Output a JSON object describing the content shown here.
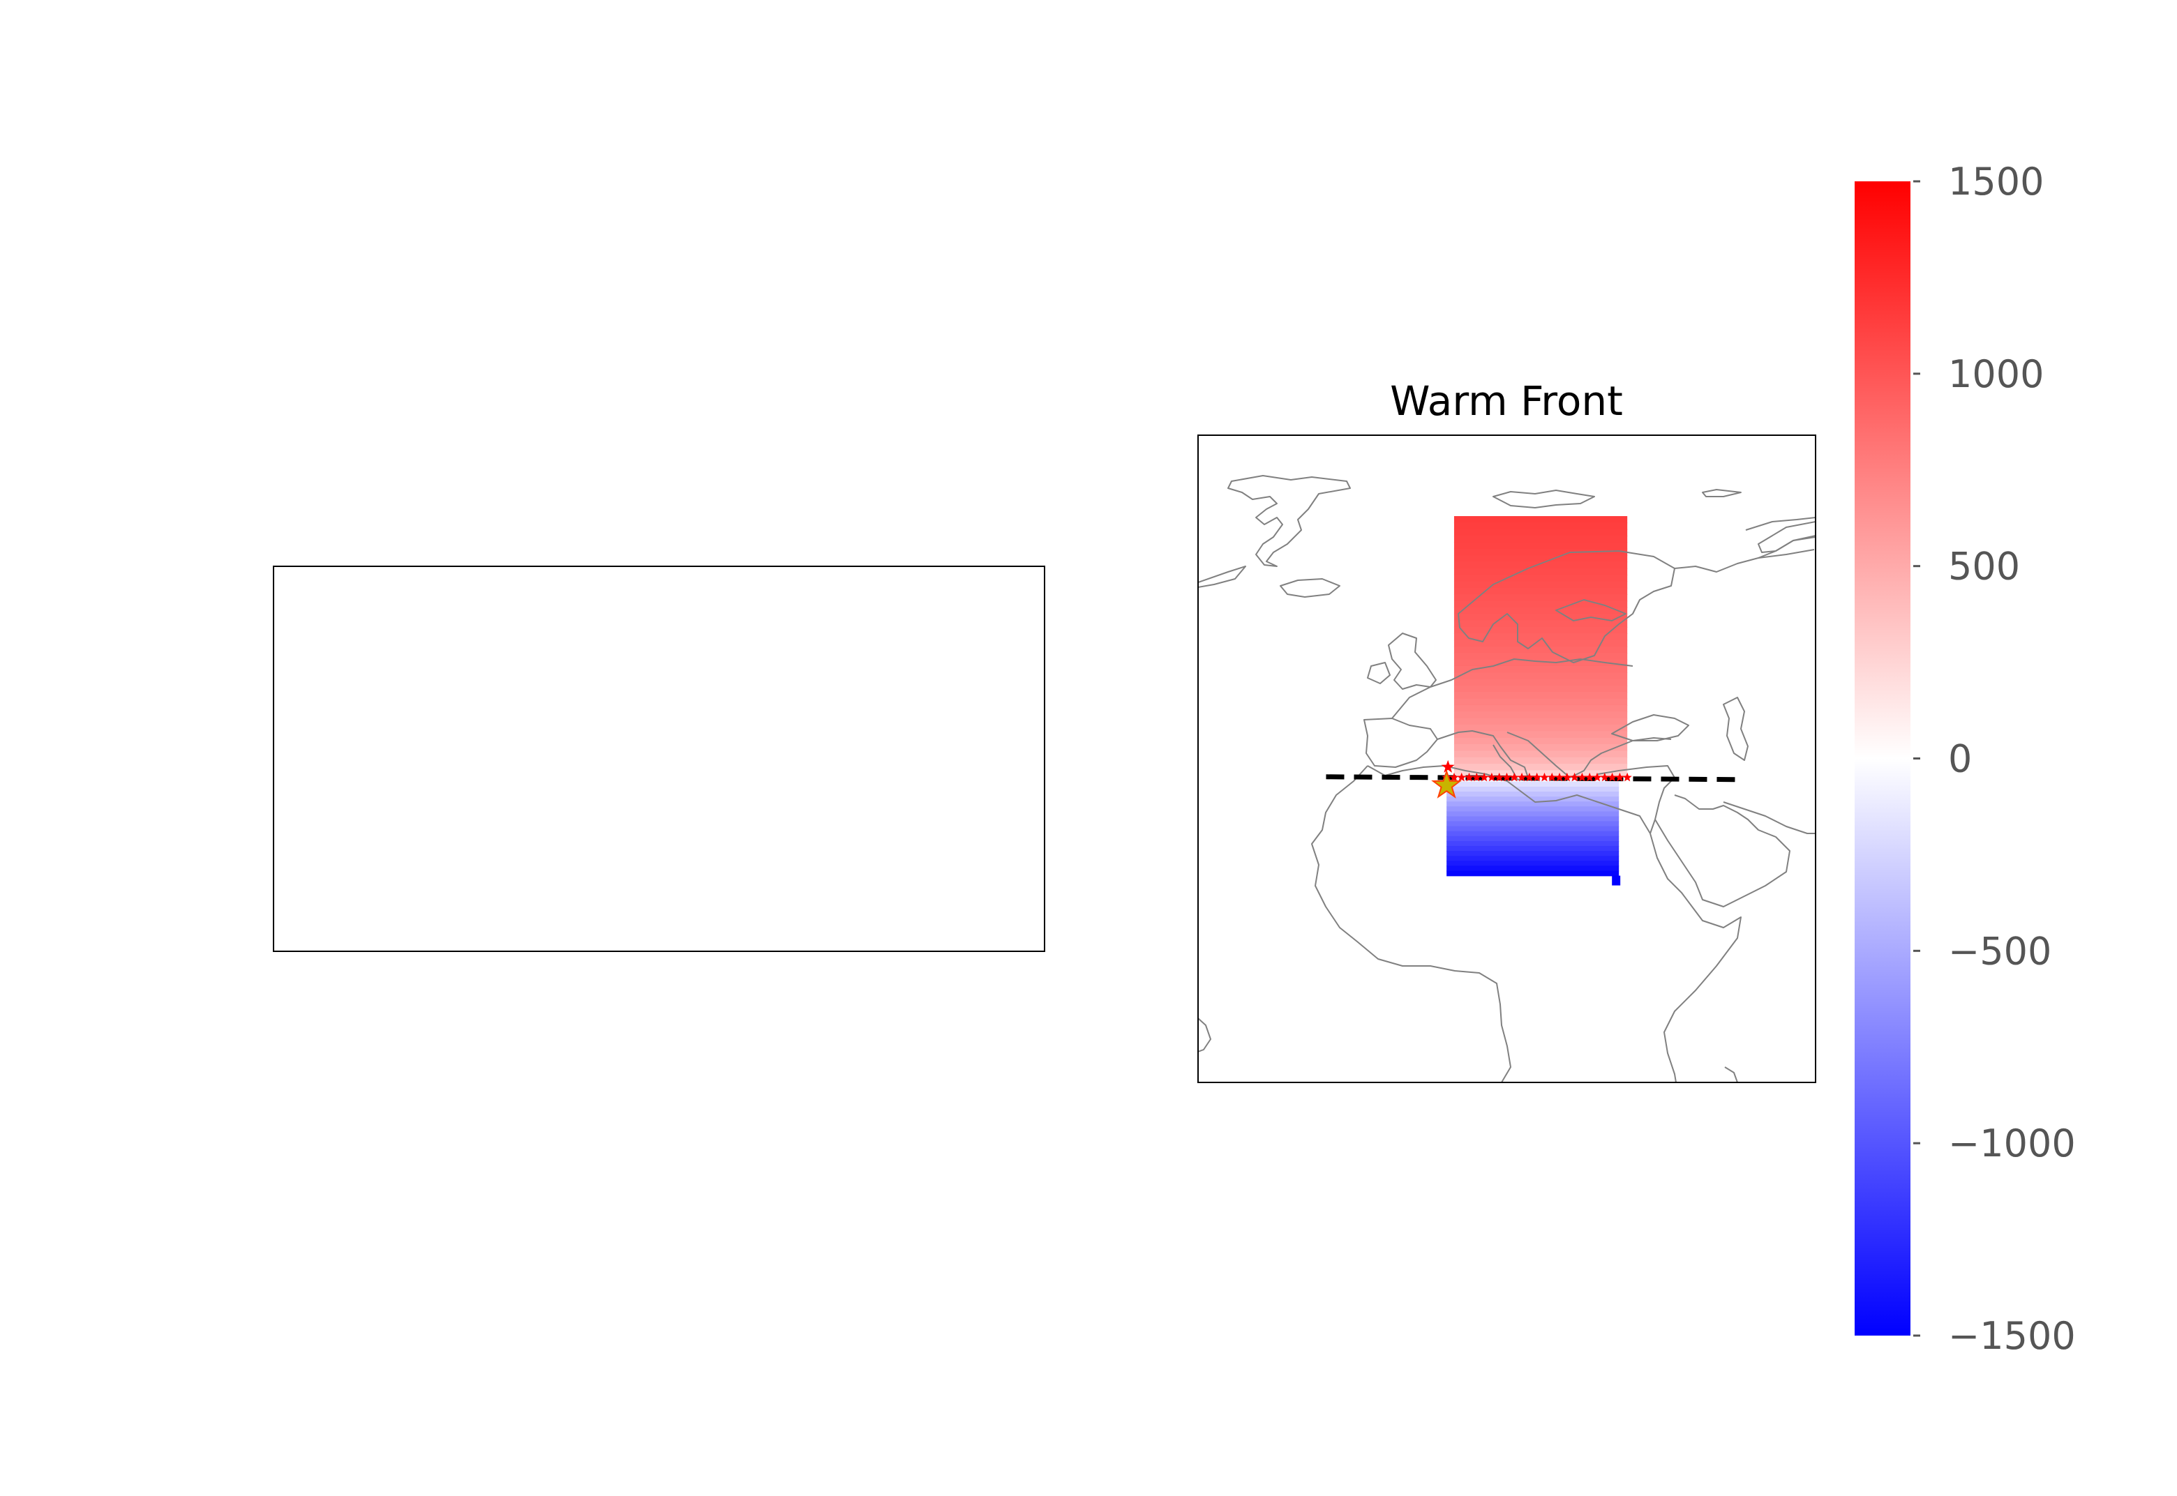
{
  "chart_data": [
    {
      "type": "other",
      "panel": "left",
      "title": "",
      "content": "empty"
    },
    {
      "type": "heatmap",
      "panel": "right",
      "title": "Warm Front",
      "map_region": "Europe, North Africa and Middle East",
      "colormap": "bwr",
      "colorbar": {
        "ticks": [
          1500,
          1000,
          500,
          0,
          -500,
          -1000,
          -1500
        ],
        "tick_labels": [
          "1500",
          "1000",
          "500",
          "0",
          "−500",
          "−1000",
          "−1500"
        ],
        "range": [
          -1500,
          1500
        ]
      },
      "field": {
        "lon_range": [
          12,
          35
        ],
        "lat_north": 71,
        "lat_front": 42,
        "lat_south": 31,
        "value_north": 1150,
        "value_front": 0,
        "value_south": -1500
      },
      "front_line": {
        "style": "dashed",
        "color": "#000000",
        "lat": 42,
        "lon_range": [
          -5,
          50
        ]
      },
      "markers": {
        "red_stars_lon": [
          11,
          12,
          13,
          14,
          15,
          16,
          17,
          18,
          19,
          20,
          21,
          22,
          23,
          24,
          25,
          26,
          27,
          28,
          29,
          30,
          31,
          32,
          33,
          34,
          35
        ],
        "red_star_color": "#ff0000",
        "origin_star": {
          "lon": 11,
          "lat": 41.5,
          "color": "#c8b400"
        }
      },
      "grid": false
    }
  ]
}
